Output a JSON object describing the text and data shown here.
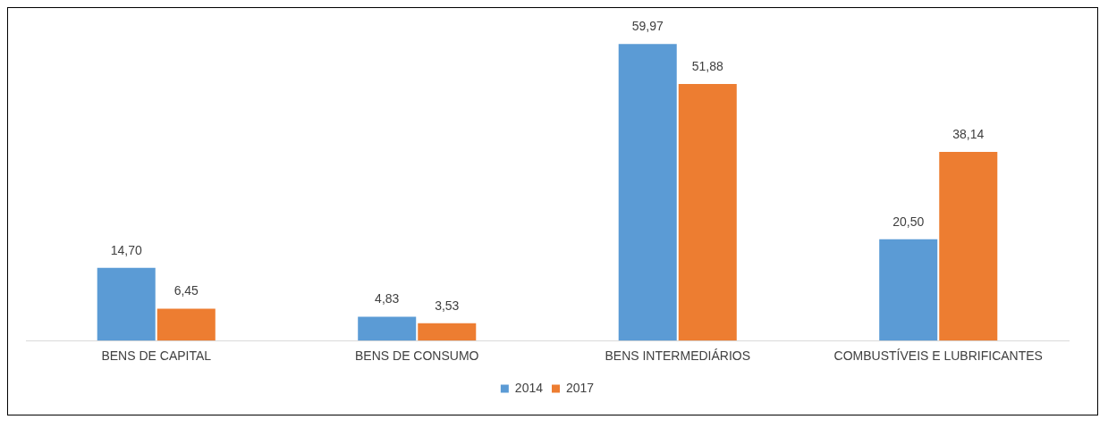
{
  "chart_data": {
    "type": "bar",
    "categories": [
      "BENS DE CAPITAL",
      "BENS DE CONSUMO",
      "BENS INTERMEDIÁRIOS",
      "COMBUSTÍVEIS E LUBRIFICANTES"
    ],
    "series": [
      {
        "name": "2014",
        "color": "#5b9bd5",
        "values": [
          14.7,
          4.83,
          59.97,
          20.5
        ],
        "value_labels": [
          "14,70",
          "4,83",
          "59,97",
          "20,50"
        ]
      },
      {
        "name": "2017",
        "color": "#ed7d31",
        "values": [
          6.45,
          3.53,
          51.88,
          38.14
        ],
        "value_labels": [
          "6,45",
          "3,53",
          "51,88",
          "38,14"
        ]
      }
    ],
    "legend": "bottom",
    "grid": false
  }
}
